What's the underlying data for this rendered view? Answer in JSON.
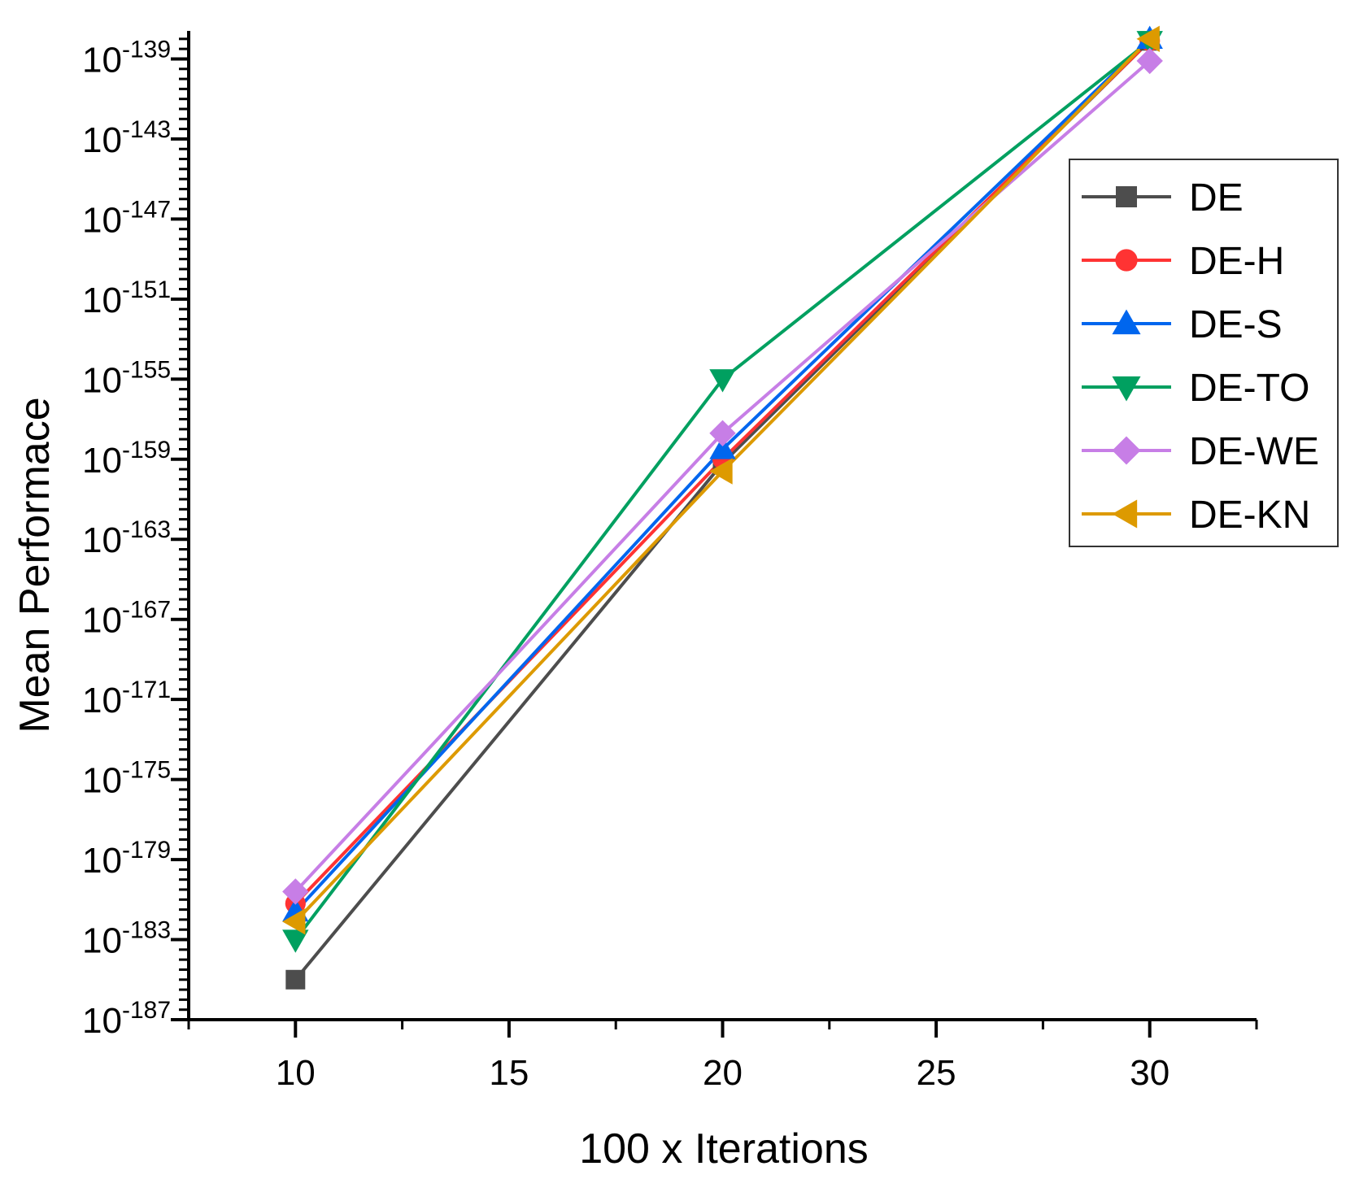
{
  "chart_data": {
    "type": "line",
    "xlabel": "100 x Iterations",
    "ylabel": "Mean Performace",
    "yscale": "log10",
    "x": [
      10,
      20,
      30
    ],
    "xlim": [
      7.5,
      32.5
    ],
    "xticks": [
      10,
      15,
      20,
      25,
      30
    ],
    "ylim_exponent": [
      -187,
      -137.6
    ],
    "yticks_exponent": [
      -187,
      -183,
      -179,
      -175,
      -171,
      -167,
      -163,
      -159,
      -155,
      -151,
      -147,
      -143,
      -139
    ],
    "legend_position": "top-right",
    "series": [
      {
        "name": "DE",
        "color": "#4d4d4d",
        "marker": "square",
        "log10_values": [
          -185.0,
          -159.2,
          -138.1
        ]
      },
      {
        "name": "DE-H",
        "color": "#ff3333",
        "marker": "circle",
        "log10_values": [
          -181.2,
          -159.0,
          -138.1
        ]
      },
      {
        "name": "DE-S",
        "color": "#0066ee",
        "marker": "triangle-up",
        "log10_values": [
          -181.6,
          -158.5,
          -138.0
        ]
      },
      {
        "name": "DE-TO",
        "color": "#00a060",
        "marker": "triangle-down",
        "log10_values": [
          -183.0,
          -155.0,
          -138.1
        ]
      },
      {
        "name": "DE-WE",
        "color": "#c77ee6",
        "marker": "diamond",
        "log10_values": [
          -180.6,
          -157.7,
          -139.1
        ]
      },
      {
        "name": "DE-KN",
        "color": "#dd9a00",
        "marker": "triangle-left",
        "log10_values": [
          -182.1,
          -159.6,
          -138.0
        ]
      }
    ]
  }
}
